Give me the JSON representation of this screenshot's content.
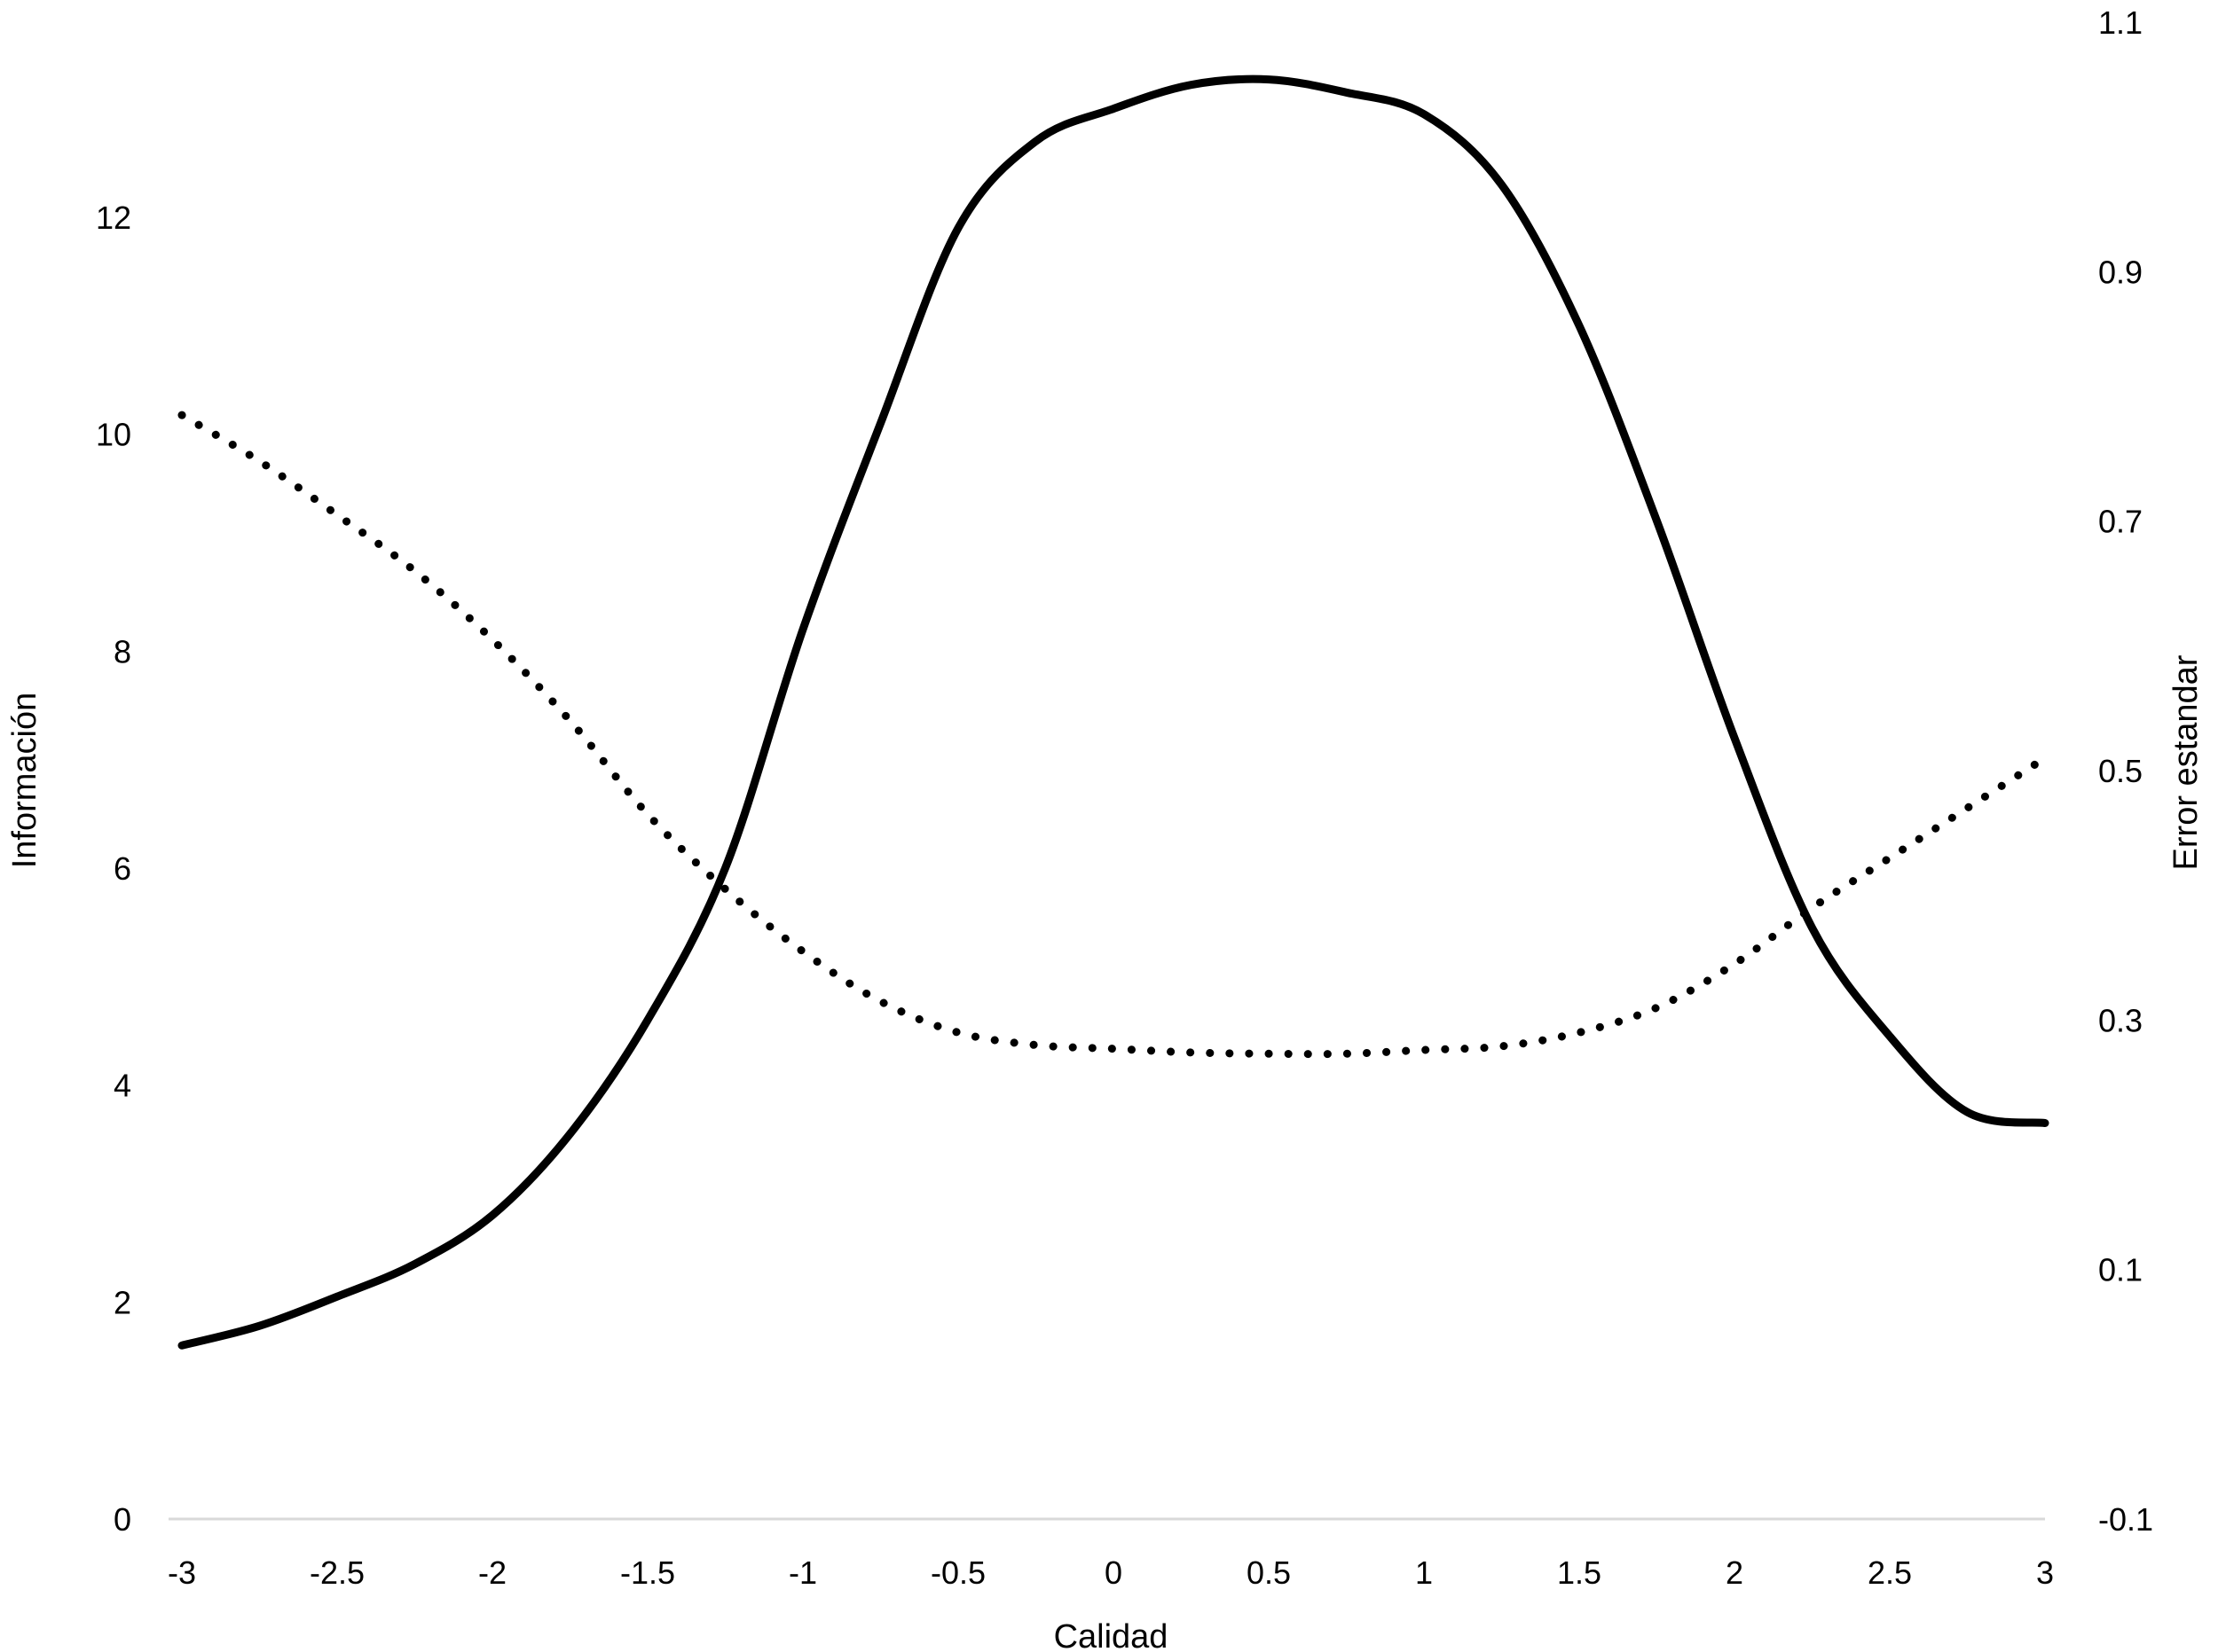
{
  "chart_data": {
    "type": "line",
    "title": "",
    "xlabel": "Calidad",
    "ylabel": "Información",
    "y2label": "Error estandar",
    "x_ticks": [
      "-3",
      "-2.5",
      "-2",
      "-1.5",
      "-1",
      "-0.5",
      "0",
      "0.5",
      "1",
      "1.5",
      "2",
      "2.5",
      "3"
    ],
    "y_ticks": [
      "0",
      "2",
      "4",
      "6",
      "8",
      "10",
      "12"
    ],
    "y2_ticks": [
      "-0.1",
      "0.1",
      "0.3",
      "0.5",
      "0.7",
      "0.9",
      "1.1"
    ],
    "xlim": [
      -3,
      3
    ],
    "ylim": [
      0,
      13.7
    ],
    "y2lim": [
      -0.1,
      1.1
    ],
    "grid": false,
    "legend": "none",
    "series": [
      {
        "axis": "left",
        "style": "solid",
        "color": "#000000",
        "x": [
          -3,
          -2.75,
          -2.5,
          -2.25,
          -2,
          -1.75,
          -1.5,
          -1.25,
          -1,
          -0.75,
          -0.5,
          -0.25,
          0,
          0.25,
          0.5,
          0.75,
          1,
          1.25,
          1.5,
          1.75,
          2,
          2.25,
          2.5,
          2.75,
          3
        ],
        "values": [
          1.6,
          1.78,
          2.05,
          2.35,
          2.8,
          3.55,
          4.6,
          6.0,
          8.2,
          10.1,
          11.9,
          12.7,
          13.0,
          13.22,
          13.27,
          13.15,
          12.95,
          12.3,
          11.0,
          9.2,
          7.2,
          5.45,
          4.45,
          3.75,
          3.65
        ]
      },
      {
        "axis": "right",
        "style": "dotted",
        "color": "#000000",
        "x": [
          -3,
          -2.75,
          -2.5,
          -2.25,
          -2,
          -1.75,
          -1.5,
          -1.25,
          -1,
          -0.75,
          -0.5,
          -0.25,
          0,
          0.25,
          0.5,
          0.75,
          1,
          1.25,
          1.5,
          1.75,
          2,
          2.25,
          2.5,
          2.75,
          3
        ],
        "values": [
          0.785,
          0.748,
          0.705,
          0.66,
          0.605,
          0.54,
          0.465,
          0.405,
          0.355,
          0.315,
          0.29,
          0.28,
          0.277,
          0.274,
          0.273,
          0.273,
          0.276,
          0.279,
          0.29,
          0.31,
          0.345,
          0.39,
          0.43,
          0.47,
          0.51
        ]
      }
    ]
  }
}
